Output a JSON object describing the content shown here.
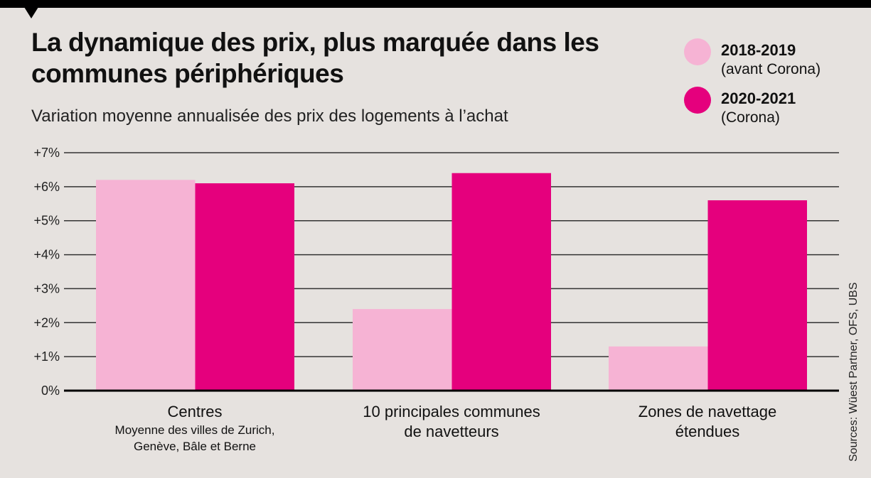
{
  "title": "La dynamique des prix, plus marquée dans les communes périphériques",
  "subtitle": "Variation moyenne annualisée des prix des logements à l’achat",
  "source": "Sources: Wüest Partner, OFS, UBS",
  "colors": {
    "background": "#e6e2df",
    "series_2018_2019": "#f6b3d4",
    "series_2020_2021": "#e5007d"
  },
  "legend": [
    {
      "name": "2018-2019",
      "sub": "(avant Corona)",
      "color": "#f6b3d4"
    },
    {
      "name": "2020-2021",
      "sub": "(Corona)",
      "color": "#e5007d"
    }
  ],
  "chart_data": {
    "type": "bar",
    "title": "La dynamique des prix, plus marquée dans les communes périphériques",
    "subtitle": "Variation moyenne annualisée des prix des logements à l’achat",
    "categories": [
      "Centres",
      "10 principales communes de navetteurs",
      "Zones de navettage étendues"
    ],
    "category_labels": [
      {
        "line1": "Centres",
        "line2": "",
        "note1": "Moyenne des villes de Zurich,",
        "note2": "Genève, Bâle et Berne"
      },
      {
        "line1": "10 principales communes",
        "line2": "de navetteurs",
        "note1": "",
        "note2": ""
      },
      {
        "line1": "Zones de navettage",
        "line2": "étendues",
        "note1": "",
        "note2": ""
      }
    ],
    "series": [
      {
        "name": "2018-2019 (avant Corona)",
        "values": [
          6.2,
          2.4,
          1.3
        ],
        "color": "#f6b3d4"
      },
      {
        "name": "2020-2021 (Corona)",
        "values": [
          6.1,
          6.4,
          5.6
        ],
        "color": "#e5007d"
      }
    ],
    "ylim": [
      0,
      7
    ],
    "yticks": [
      "0%",
      "+1%",
      "+2%",
      "+3%",
      "+4%",
      "+5%",
      "+6%",
      "+7%"
    ],
    "ylabel": "",
    "xlabel": "",
    "grid": true,
    "legend_position": "top-right"
  }
}
